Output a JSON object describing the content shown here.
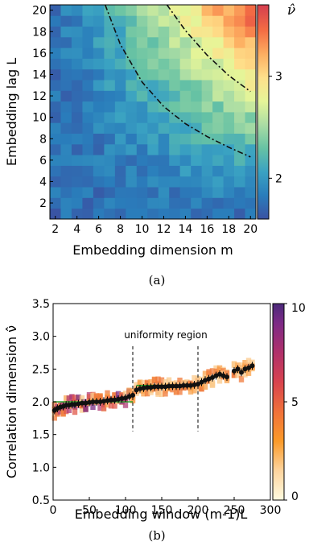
{
  "chart_data": [
    {
      "type": "heatmap",
      "panel_label": "(a)",
      "xlabel": "Embedding dimension m",
      "ylabel": "Embedding lag L",
      "colorbar_label": "ν̂",
      "x": [
        2,
        3,
        4,
        5,
        6,
        7,
        8,
        9,
        10,
        11,
        12,
        13,
        14,
        15,
        16,
        17,
        18,
        19,
        20
      ],
      "y": [
        1,
        2,
        3,
        4,
        5,
        6,
        7,
        8,
        9,
        10,
        11,
        12,
        13,
        14,
        15,
        16,
        17,
        18,
        19,
        20
      ],
      "xticks": [
        "2",
        "4",
        "6",
        "8",
        "10",
        "12",
        "14",
        "16",
        "18",
        "20"
      ],
      "yticks": [
        "2",
        "4",
        "6",
        "8",
        "10",
        "12",
        "14",
        "16",
        "18",
        "20"
      ],
      "xlim": [
        1.5,
        20.5
      ],
      "ylim": [
        0.5,
        20.5
      ],
      "colorbar_ticks": [
        "2",
        "3"
      ],
      "colorbar_range": [
        1.6,
        3.7
      ],
      "colormap": [
        "#3a52a3",
        "#2a7dbb",
        "#3aa2c2",
        "#66c2a4",
        "#abdda4",
        "#e6f598",
        "#fee08b",
        "#fdae61",
        "#f46d43",
        "#d53e4f"
      ],
      "value_model": "nu ≈ 1.75 + 1.8·((m−1)L/380)^1.3, with cell noise",
      "boundary_curves": [
        {
          "style": "dash-dot",
          "points": [
            [
              6.6,
              20.5
            ],
            [
              8,
              16.8
            ],
            [
              10,
              13.3
            ],
            [
              12,
              11
            ],
            [
              14,
              9.4
            ],
            [
              16,
              8.2
            ],
            [
              18,
              7.2
            ],
            [
              20,
              6.3
            ]
          ]
        },
        {
          "style": "dash-dot",
          "points": [
            [
              12.3,
              20.5
            ],
            [
              14,
              18.1
            ],
            [
              16,
              15.8
            ],
            [
              18,
              13.9
            ],
            [
              20,
              12.4
            ]
          ]
        }
      ]
    },
    {
      "type": "scatter",
      "panel_label": "(b)",
      "xlabel": "Embedding window (m-1)L",
      "ylabel": "Correlation dimension ν̂",
      "xlim": [
        0,
        300
      ],
      "ylim": [
        0.5,
        3.5
      ],
      "xticks": [
        "0",
        "50",
        "100",
        "150",
        "200",
        "250",
        "300"
      ],
      "yticks": [
        "0.5",
        "1.0",
        "1.5",
        "2.0",
        "2.5",
        "3.0",
        "3.5"
      ],
      "colorbar_ticks": [
        "0",
        "5",
        "10"
      ],
      "colorbar_range": [
        0,
        10
      ],
      "annotation": "uniformity region",
      "region_bounds": [
        110,
        200
      ],
      "plateau_segments": [
        {
          "x": [
            0,
            110
          ],
          "y": 2.0
        },
        {
          "x": [
            115,
            200
          ],
          "y": 2.25
        }
      ],
      "series": [
        {
          "name": "",
          "x": [
            2,
            6,
            10,
            14,
            18,
            22,
            26,
            30,
            35,
            40,
            45,
            50,
            55,
            60,
            65,
            70,
            75,
            80,
            85,
            90,
            95,
            100,
            105,
            110,
            115,
            120,
            125,
            130,
            135,
            140,
            145,
            150,
            155,
            160,
            165,
            170,
            175,
            180,
            185,
            190,
            195,
            200,
            205,
            210,
            215,
            220,
            225,
            230,
            235,
            240,
            250,
            255,
            260,
            265,
            270,
            275
          ],
          "y": [
            1.87,
            1.9,
            1.92,
            1.93,
            1.95,
            1.95,
            1.96,
            1.96,
            1.97,
            1.98,
            1.98,
            1.99,
            2.0,
            2.0,
            2.0,
            2.01,
            2.02,
            2.03,
            2.03,
            2.04,
            2.05,
            2.06,
            2.08,
            2.1,
            2.18,
            2.2,
            2.21,
            2.22,
            2.22,
            2.23,
            2.23,
            2.23,
            2.23,
            2.24,
            2.24,
            2.24,
            2.24,
            2.25,
            2.25,
            2.25,
            2.26,
            2.27,
            2.3,
            2.33,
            2.35,
            2.37,
            2.4,
            2.42,
            2.4,
            2.38,
            2.47,
            2.5,
            2.45,
            2.5,
            2.52,
            2.55
          ],
          "yerr": 0.06
        }
      ]
    }
  ]
}
